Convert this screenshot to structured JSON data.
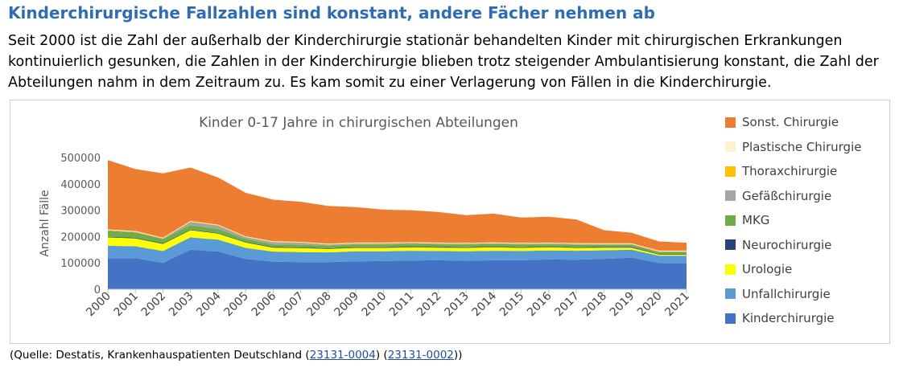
{
  "header": {
    "title": "Kinderchirurgische Fallzahlen sind konstant, andere Fächer nehmen ab",
    "description": "Seit 2000 ist die Zahl der außerhalb der Kinderchirurgie stationär behandelten Kinder mit chirurgischen Erkrankungen kontinuierlich gesunken, die Zahlen in der Kinderchirurgie blieben trotz steigender Ambulantisierung konstant, die Zahl der Abteilungen nahm in dem Zeitraum zu. Es kam somit zu einer Verlagerung von Fällen in die Kinderchirurgie."
  },
  "source": {
    "prefix": "(Quelle: Destatis, Krankenhauspatienten Deutschland (",
    "link1": "23131-0004",
    "middle": ") (",
    "link2": "23131-0002",
    "suffix": "))"
  },
  "chart_data": {
    "type": "area",
    "stacked": true,
    "title": "Kinder 0-17 Jahre in chirurgischen Abteilungen",
    "xlabel": "",
    "ylabel": "Anzahl Fälle",
    "ylim": [
      0,
      500000
    ],
    "yticks": [
      0,
      100000,
      200000,
      300000,
      400000,
      500000
    ],
    "ytick_labels": [
      "0",
      "100000",
      "200000",
      "300000",
      "400000",
      "500000"
    ],
    "grid": false,
    "legend_position": "right",
    "x": [
      "2000",
      "2001",
      "2002",
      "2003",
      "2004",
      "2005",
      "2006",
      "2007",
      "2008",
      "2009",
      "2010",
      "2011",
      "2012",
      "2013",
      "2014",
      "2015",
      "2016",
      "2017",
      "2018",
      "2019",
      "2020",
      "2021"
    ],
    "series": [
      {
        "name": "Kinderchirurgie",
        "color": "#4472c4",
        "values": [
          118000,
          118000,
          100000,
          150000,
          143000,
          115000,
          105000,
          103000,
          103000,
          106000,
          107000,
          109000,
          110000,
          108000,
          110000,
          110000,
          113000,
          112000,
          115000,
          120000,
          100000,
          100000
        ]
      },
      {
        "name": "Unfallchirurgie",
        "color": "#5b9bd5",
        "values": [
          47000,
          45000,
          45000,
          47000,
          45000,
          42000,
          38000,
          38000,
          37000,
          38000,
          37000,
          37000,
          35000,
          36000,
          36000,
          35000,
          34000,
          34000,
          33000,
          30000,
          27000,
          27000
        ]
      },
      {
        "name": "Urologie",
        "color": "#ffff00",
        "values": [
          32000,
          30000,
          27000,
          27000,
          23000,
          20000,
          15000,
          15000,
          13000,
          13000,
          13000,
          13000,
          13000,
          13000,
          13000,
          12000,
          12000,
          11000,
          10000,
          8000,
          5000,
          5000
        ]
      },
      {
        "name": "Neurochirurgie",
        "color": "#264478",
        "values": [
          2500,
          2500,
          2500,
          2500,
          2500,
          2500,
          2500,
          2500,
          2500,
          2500,
          2500,
          2500,
          2500,
          2500,
          2500,
          2500,
          2500,
          2500,
          2500,
          2500,
          2000,
          2000
        ]
      },
      {
        "name": "MKG",
        "color": "#70ad47",
        "values": [
          22000,
          20000,
          16000,
          17000,
          15000,
          12000,
          10000,
          10000,
          10000,
          10000,
          10000,
          10000,
          10000,
          10000,
          10000,
          10000,
          9000,
          9000,
          8000,
          8000,
          7000,
          7000
        ]
      },
      {
        "name": "Gefäßchirurgie",
        "color": "#a5a5a5",
        "values": [
          2000,
          2000,
          2000,
          12000,
          13000,
          6000,
          8000,
          8000,
          4000,
          4000,
          4000,
          4000,
          3000,
          3000,
          3000,
          3000,
          3000,
          3000,
          2500,
          2500,
          2000,
          2000
        ]
      },
      {
        "name": "Thoraxchirurgie",
        "color": "#ffc000",
        "values": [
          1500,
          1500,
          1500,
          1500,
          1500,
          1500,
          1500,
          1500,
          1500,
          1500,
          1500,
          1500,
          1500,
          1500,
          1500,
          1500,
          1500,
          1500,
          1500,
          1500,
          1500,
          1500
        ]
      },
      {
        "name": "Plastische Chirurgie",
        "color": "#fff2cc",
        "values": [
          2000,
          2000,
          2000,
          2000,
          2000,
          2000,
          2000,
          2000,
          2000,
          2000,
          2000,
          2000,
          2000,
          2000,
          2000,
          2000,
          2000,
          2000,
          2000,
          2000,
          2000,
          2000
        ]
      },
      {
        "name": "Sonst. Chirurgie",
        "color": "#ed7d31",
        "values": [
          263000,
          235000,
          244000,
          203000,
          179000,
          165000,
          158000,
          152000,
          143000,
          135000,
          125000,
          121000,
          116000,
          105000,
          109000,
          96000,
          98000,
          90000,
          50000,
          40000,
          35000,
          30000
        ]
      }
    ]
  }
}
